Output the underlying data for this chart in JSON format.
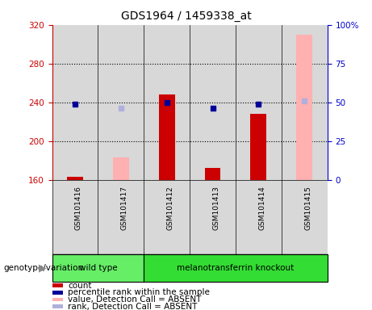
{
  "title": "GDS1964 / 1459338_at",
  "samples": [
    "GSM101416",
    "GSM101417",
    "GSM101412",
    "GSM101413",
    "GSM101414",
    "GSM101415"
  ],
  "group_wt_count": 2,
  "group_colors": {
    "wild type": "#66ee66",
    "melanotransferrin knockout": "#33dd33"
  },
  "group_labels": [
    "wild type",
    "melanotransferrin knockout"
  ],
  "ylim_left": [
    160,
    320
  ],
  "ylim_right": [
    0,
    100
  ],
  "yticks_left": [
    160,
    200,
    240,
    280,
    320
  ],
  "yticks_right": [
    0,
    25,
    50,
    75,
    100
  ],
  "ytick_labels_right": [
    "0",
    "25",
    "50",
    "75",
    "100%"
  ],
  "count_values": [
    163,
    null,
    248,
    172,
    228,
    null
  ],
  "percentile_values": [
    49,
    null,
    50,
    46,
    49,
    null
  ],
  "absent_value_values": [
    null,
    183,
    null,
    null,
    null,
    310
  ],
  "absent_rank_values": [
    null,
    46,
    null,
    null,
    null,
    51
  ],
  "bar_width": 0.35,
  "count_color": "#cc0000",
  "percentile_color": "#000099",
  "absent_value_color": "#ffb0b0",
  "absent_rank_color": "#b0b0dd",
  "left_axis_color": "#cc0000",
  "right_axis_color": "#0000cc",
  "plot_bg": "#ffffff",
  "col_bg": "#d8d8d8",
  "grid_color": "#000000",
  "grid_yticks": [
    200,
    240,
    280
  ],
  "genotype_label": "genotype/variation",
  "legend_items": [
    {
      "label": "count",
      "color": "#cc0000"
    },
    {
      "label": "percentile rank within the sample",
      "color": "#000099"
    },
    {
      "label": "value, Detection Call = ABSENT",
      "color": "#ffb0b0"
    },
    {
      "label": "rank, Detection Call = ABSENT",
      "color": "#b0b0dd"
    }
  ]
}
